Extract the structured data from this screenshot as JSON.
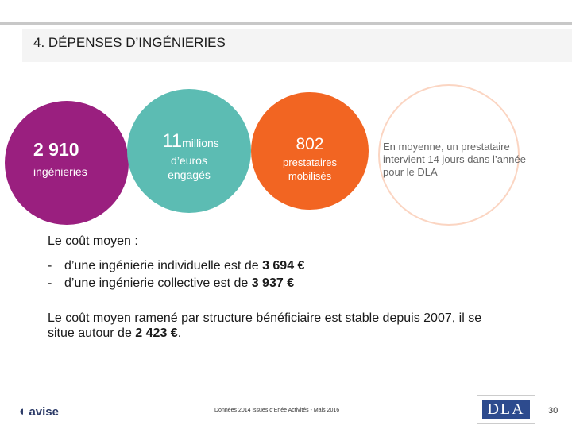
{
  "header": {
    "title": "4. DÉPENSES D’INGÉNIERIES"
  },
  "circles": [
    {
      "number": "2 910",
      "label": "ingénieries"
    },
    {
      "number": "11",
      "unit": "millions",
      "label": "d’euros engagés"
    },
    {
      "number": "802",
      "label": "prestataires mobilisés"
    },
    {
      "label": "En moyenne, un prestataire intervient 14 jours dans l’année pour le DLA"
    }
  ],
  "cost": {
    "intro": "Le coût moyen :",
    "items": [
      {
        "bullet": "-",
        "text": "d’une ingénierie individuelle est de ",
        "amount": "3 694 €"
      },
      {
        "bullet": "-",
        "text": "d’une ingénierie collective est de ",
        "amount": "3 937 €"
      }
    ],
    "summary": {
      "text": "Le coût moyen ramené par structure bénéficiaire est stable depuis 2007, il se situe autour de ",
      "amount": "2 423 €",
      "end": "."
    }
  },
  "footer": {
    "logo": "avise",
    "source": "Données 2014 issues d’Enée Activités - Mais 2016",
    "dla_logo": "DLA",
    "page": "30"
  }
}
